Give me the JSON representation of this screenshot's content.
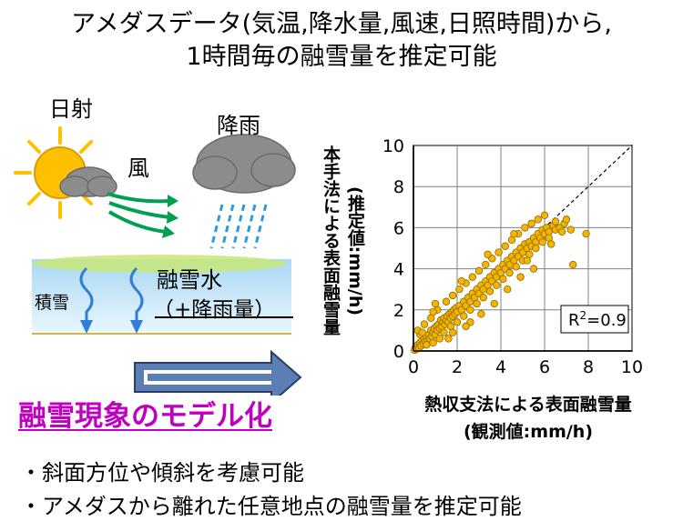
{
  "title": {
    "line1": "アメダスデータ(気温,降水量,風速,日照時間)から,",
    "line2": "1時間毎の融雪量を推定可能"
  },
  "illustration": {
    "sun_label": "日射",
    "wind_label": "風",
    "rain_label": "降雨",
    "snowpack_label": "積雪",
    "meltwater_label": "融雪水",
    "rain_amount_label": "（+降雨量）"
  },
  "heading": "融雪現象のモデル化",
  "bullets": [
    "・斜面方位や傾斜を考慮可能",
    "・アメダスから離れた任意地点の融雪量を推定可能"
  ],
  "colors": {
    "heading": "#c000c0",
    "sun": "#ffc000",
    "cloud": "#8c8c8c",
    "wind_arrow": "#00a050",
    "rain": "#2e9bd8",
    "snow_top": "#a9d8f5",
    "snow_bottom": "#e8f6fd",
    "melt_arrow": "#2f7ed8",
    "scatter_point": "#f4b400",
    "big_arrow": "#5b7fb5"
  },
  "chart_data": {
    "type": "scatter",
    "xlabel_line1": "熱収支法による表面融雪量",
    "xlabel_line2": "(観測値:mm/h)",
    "ylabel_line1": "本手法による表面融雪量",
    "ylabel_line2": "(推定値:mm/h)",
    "xlim": [
      0,
      10
    ],
    "ylim": [
      0,
      10
    ],
    "xticks": [
      "0",
      "2",
      "4",
      "6",
      "8",
      "10"
    ],
    "yticks": [
      "0",
      "2",
      "4",
      "6",
      "8",
      "10"
    ],
    "grid": true,
    "reference_line": "y = x (dashed)",
    "r2_label": "R",
    "r2_sup": "2",
    "r2_value": "=0.9",
    "points": [
      [
        0.05,
        0.05
      ],
      [
        0.1,
        0.2
      ],
      [
        0.15,
        0.1
      ],
      [
        0.2,
        0.3
      ],
      [
        0.25,
        0.15
      ],
      [
        0.3,
        0.4
      ],
      [
        0.35,
        0.25
      ],
      [
        0.4,
        0.5
      ],
      [
        0.45,
        0.35
      ],
      [
        0.5,
        0.6
      ],
      [
        0.55,
        0.45
      ],
      [
        0.6,
        0.7
      ],
      [
        0.65,
        0.5
      ],
      [
        0.7,
        0.8
      ],
      [
        0.75,
        0.6
      ],
      [
        0.8,
        1.0
      ],
      [
        0.85,
        0.7
      ],
      [
        0.9,
        0.9
      ],
      [
        0.95,
        1.1
      ],
      [
        1.0,
        0.8
      ],
      [
        1.05,
        1.2
      ],
      [
        1.1,
        1.0
      ],
      [
        1.15,
        1.3
      ],
      [
        1.2,
        1.1
      ],
      [
        1.25,
        1.5
      ],
      [
        1.3,
        1.2
      ],
      [
        1.35,
        1.4
      ],
      [
        1.4,
        1.6
      ],
      [
        1.45,
        1.3
      ],
      [
        1.5,
        1.5
      ],
      [
        1.55,
        1.7
      ],
      [
        1.6,
        1.4
      ],
      [
        1.65,
        1.8
      ],
      [
        1.7,
        1.6
      ],
      [
        1.75,
        1.9
      ],
      [
        1.8,
        1.7
      ],
      [
        1.85,
        2.0
      ],
      [
        1.9,
        1.8
      ],
      [
        1.95,
        2.1
      ],
      [
        2.0,
        1.9
      ],
      [
        2.1,
        2.2
      ],
      [
        2.2,
        2.0
      ],
      [
        2.3,
        2.4
      ],
      [
        2.4,
        2.2
      ],
      [
        2.5,
        2.6
      ],
      [
        2.6,
        2.4
      ],
      [
        2.7,
        2.8
      ],
      [
        2.8,
        2.6
      ],
      [
        2.9,
        3.0
      ],
      [
        3.0,
        2.8
      ],
      [
        3.1,
        3.2
      ],
      [
        3.2,
        3.0
      ],
      [
        3.3,
        3.4
      ],
      [
        3.4,
        3.2
      ],
      [
        3.5,
        3.6
      ],
      [
        3.6,
        3.4
      ],
      [
        3.7,
        3.8
      ],
      [
        3.8,
        3.6
      ],
      [
        3.9,
        4.0
      ],
      [
        4.0,
        3.8
      ],
      [
        4.1,
        4.2
      ],
      [
        4.2,
        4.0
      ],
      [
        4.3,
        4.4
      ],
      [
        4.4,
        4.2
      ],
      [
        4.5,
        4.6
      ],
      [
        4.6,
        4.4
      ],
      [
        4.7,
        4.8
      ],
      [
        4.8,
        4.6
      ],
      [
        4.9,
        5.0
      ],
      [
        5.0,
        4.8
      ],
      [
        5.1,
        5.2
      ],
      [
        5.2,
        5.0
      ],
      [
        5.3,
        5.3
      ],
      [
        5.4,
        5.1
      ],
      [
        5.5,
        5.5
      ],
      [
        5.6,
        5.3
      ],
      [
        5.7,
        5.7
      ],
      [
        5.8,
        5.5
      ],
      [
        5.9,
        5.9
      ],
      [
        6.0,
        5.7
      ],
      [
        6.1,
        6.0
      ],
      [
        6.2,
        5.8
      ],
      [
        6.4,
        6.1
      ],
      [
        6.5,
        5.9
      ],
      [
        6.7,
        6.0
      ],
      [
        6.9,
        6.2
      ],
      [
        7.0,
        6.4
      ],
      [
        7.3,
        4.2
      ],
      [
        7.9,
        5.7
      ],
      [
        0.6,
        0.3
      ],
      [
        0.3,
        0.8
      ],
      [
        0.9,
        0.4
      ],
      [
        1.2,
        0.6
      ],
      [
        0.5,
        1.3
      ],
      [
        1.4,
        0.9
      ],
      [
        0.8,
        1.6
      ],
      [
        1.7,
        1.2
      ],
      [
        1.1,
        2.0
      ],
      [
        2.0,
        1.4
      ],
      [
        1.5,
        2.4
      ],
      [
        2.3,
        1.7
      ],
      [
        1.8,
        2.7
      ],
      [
        2.6,
        2.0
      ],
      [
        2.1,
        3.0
      ],
      [
        2.9,
        2.3
      ],
      [
        2.4,
        3.3
      ],
      [
        3.2,
        2.6
      ],
      [
        2.7,
        3.6
      ],
      [
        3.5,
        2.9
      ],
      [
        3.0,
        3.9
      ],
      [
        3.8,
        3.2
      ],
      [
        3.3,
        4.2
      ],
      [
        4.1,
        3.5
      ],
      [
        3.6,
        4.5
      ],
      [
        4.4,
        3.8
      ],
      [
        3.9,
        4.8
      ],
      [
        4.7,
        4.1
      ],
      [
        4.2,
        5.1
      ],
      [
        5.0,
        4.4
      ],
      [
        4.5,
        5.4
      ],
      [
        5.3,
        4.7
      ],
      [
        4.8,
        5.7
      ],
      [
        5.6,
        5.0
      ],
      [
        5.1,
        6.0
      ],
      [
        5.9,
        5.3
      ],
      [
        5.4,
        6.2
      ],
      [
        6.2,
        5.5
      ],
      [
        6.5,
        6.3
      ],
      [
        6.8,
        5.8
      ],
      [
        7.2,
        5.9
      ],
      [
        1.8,
        0.9
      ],
      [
        2.6,
        1.4
      ],
      [
        3.1,
        1.8
      ],
      [
        3.7,
        2.3
      ],
      [
        4.3,
        3.0
      ],
      [
        4.9,
        3.6
      ],
      [
        5.5,
        4.0
      ],
      [
        0.2,
        1.0
      ],
      [
        1.0,
        2.3
      ],
      [
        2.2,
        3.4
      ],
      [
        6.0,
        6.6
      ],
      [
        5.7,
        6.4
      ],
      [
        4.6,
        5.7
      ],
      [
        3.4,
        4.7
      ],
      [
        2.4,
        1.2
      ],
      [
        1.6,
        0.6
      ],
      [
        0.9,
        1.9
      ],
      [
        0.4,
        0.9
      ],
      [
        5.2,
        4.4
      ],
      [
        6.3,
        5.2
      ]
    ]
  }
}
